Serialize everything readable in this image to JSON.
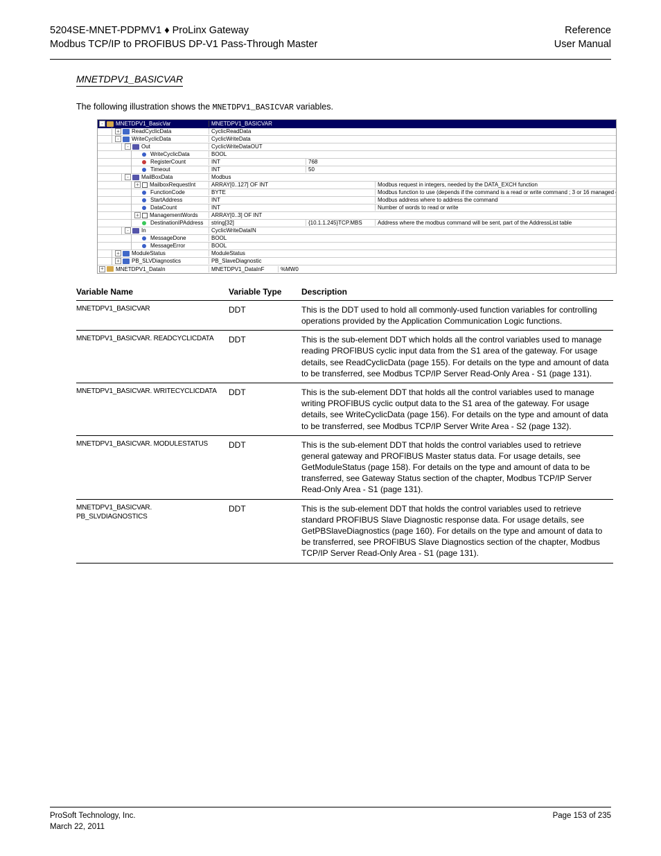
{
  "header": {
    "left1": "5204SE-MNET-PDPMV1 ♦ ProLinx Gateway",
    "left2": "Modbus TCP/IP to PROFIBUS DP-V1 Pass-Through Master",
    "right1": "Reference",
    "right2": "User Manual"
  },
  "section_title": "MNETDPV1_BASICVAR",
  "intro": {
    "prefix": "The following illustration shows the ",
    "code": "MNETDPV1_BASICVAR",
    "suffix": " variables."
  },
  "tree": {
    "header_bg": "#000060",
    "header_fg": "#ffffff",
    "col_widths": {
      "name": 160,
      "type": 100,
      "val1": 40,
      "val2": 100
    },
    "rows": [
      {
        "indent": 0,
        "exp": "-",
        "icon": "folder",
        "icon_color": "yellow",
        "name": "MNETDPV1_BasicVar",
        "type": "MNETDPV1_BASICVAR",
        "val1": "",
        "val2": "",
        "desc": "",
        "header": true
      },
      {
        "indent": 1,
        "exp": "+",
        "icon": "folder",
        "icon_color": "blue",
        "name": "ReadCyclicData",
        "type": "CyclicReadData",
        "val1": "",
        "val2": "",
        "desc": ""
      },
      {
        "indent": 1,
        "exp": "-",
        "icon": "folder",
        "icon_color": "blue",
        "name": "WriteCyclicData",
        "type": "CyclicWriteData",
        "val1": "",
        "val2": "",
        "desc": ""
      },
      {
        "indent": 2,
        "exp": "-",
        "icon": "struct",
        "icon_color": "",
        "name": "Out",
        "type": "CyclicWriteDataOUT",
        "val1": "",
        "val2": "",
        "desc": ""
      },
      {
        "indent": 3,
        "exp": "",
        "icon": "var-blue",
        "icon_color": "",
        "name": "WriteCyclicData",
        "type": "BOOL",
        "val1": "",
        "val2": "",
        "desc": ""
      },
      {
        "indent": 3,
        "exp": "",
        "icon": "var-red",
        "icon_color": "",
        "name": "RegisterCount",
        "type": "INT",
        "val1": "",
        "val2": "768",
        "desc": ""
      },
      {
        "indent": 3,
        "exp": "",
        "icon": "var-blue",
        "icon_color": "",
        "name": "Timeout",
        "type": "INT",
        "val1": "",
        "val2": "50",
        "desc": ""
      },
      {
        "indent": 2,
        "exp": "-",
        "icon": "struct",
        "icon_color": "",
        "name": "MailBoxData",
        "type": "Modbus",
        "val1": "",
        "val2": "",
        "desc": ""
      },
      {
        "indent": 3,
        "exp": "+",
        "icon": "array",
        "icon_color": "",
        "name": "MailboxRequestInt",
        "type": "ARRAY[0..127] OF INT",
        "val1": "",
        "val2": "",
        "desc": "Modbus request in integers, needed by the DATA_EXCH function"
      },
      {
        "indent": 3,
        "exp": "",
        "icon": "var-blue",
        "icon_color": "",
        "name": "FunctionCode",
        "type": "BYTE",
        "val1": "",
        "val2": "",
        "desc": "Modbus function to use (depends if the command is a read or write command ; 3 or 16 managed only)"
      },
      {
        "indent": 3,
        "exp": "",
        "icon": "var-blue",
        "icon_color": "",
        "name": "StartAddress",
        "type": "INT",
        "val1": "",
        "val2": "",
        "desc": "Modbus address where to address the command"
      },
      {
        "indent": 3,
        "exp": "",
        "icon": "var-blue",
        "icon_color": "",
        "name": "DataCount",
        "type": "INT",
        "val1": "",
        "val2": "",
        "desc": "Number of words to read or write"
      },
      {
        "indent": 3,
        "exp": "+",
        "icon": "array",
        "icon_color": "",
        "name": "ManagementWords",
        "type": "ARRAY[0..3] OF INT",
        "val1": "",
        "val2": "",
        "desc": ""
      },
      {
        "indent": 3,
        "exp": "",
        "icon": "var-green",
        "icon_color": "",
        "name": "DestinationIPAddress",
        "type": "string[32]",
        "val1": "",
        "val2": "{10.1.1.245}TCP.MBS",
        "desc": "Address where the modbus command will be sent, part of the AddressList table"
      },
      {
        "indent": 2,
        "exp": "-",
        "icon": "struct",
        "icon_color": "",
        "name": "In",
        "type": "CyclicWriteDataIN",
        "val1": "",
        "val2": "",
        "desc": ""
      },
      {
        "indent": 3,
        "exp": "",
        "icon": "var-blue",
        "icon_color": "",
        "name": "MessageDone",
        "type": "BOOL",
        "val1": "",
        "val2": "",
        "desc": ""
      },
      {
        "indent": 3,
        "exp": "",
        "icon": "var-blue",
        "icon_color": "",
        "name": "MessageError",
        "type": "BOOL",
        "val1": "",
        "val2": "",
        "desc": ""
      },
      {
        "indent": 1,
        "exp": "+",
        "icon": "folder",
        "icon_color": "blue",
        "name": "ModuleStatus",
        "type": "ModuleStatus",
        "val1": "",
        "val2": "",
        "desc": ""
      },
      {
        "indent": 1,
        "exp": "+",
        "icon": "folder",
        "icon_color": "blue",
        "name": "PB_SLVDiagnostics",
        "type": "PB_SlaveDiagnostic",
        "val1": "",
        "val2": "",
        "desc": ""
      },
      {
        "indent": 0,
        "exp": "+",
        "icon": "folder",
        "icon_color": "yellow",
        "name": "MNETDPV1_DataIn",
        "type": "MNETDPV1_DataInF",
        "val1": "%MW0",
        "val2": "",
        "desc": ""
      }
    ]
  },
  "ref_table": {
    "columns": [
      "Variable Name",
      "Variable Type",
      "Description"
    ],
    "rows": [
      {
        "var": "MNETDPV1_BASICVAR",
        "type": "DDT",
        "desc": "This is the DDT used to hold all commonly-used function variables for controlling operations provided by the Application Communication Logic functions."
      },
      {
        "var": "MNETDPV1_BASICVAR. READCYCLICDATA",
        "type": "DDT",
        "desc": "This is the sub-element DDT which holds all the control variables used to manage reading PROFIBUS cyclic input data from the S1 area of the gateway. For usage details, see ReadCyclicData (page 155). For details on the type and amount of data to be transferred, see Modbus TCP/IP Server Read-Only Area - S1 (page 131)."
      },
      {
        "var": "MNETDPV1_BASICVAR. WRITECYCLICDATA",
        "type": "DDT",
        "desc": "This is the sub-element DDT that holds all the control variables used to manage writing PROFIBUS cyclic output data to the S1 area of the gateway. For usage details, see WriteCyclicData (page 156). For details on the type and amount of data to be transferred, see Modbus TCP/IP Server Write Area - S2 (page 132)."
      },
      {
        "var": "MNETDPV1_BASICVAR. MODULESTATUS",
        "type": "DDT",
        "desc": "This is the sub-element DDT that holds the control variables used to retrieve general gateway and PROFIBUS Master status data. For usage details, see GetModuleStatus (page 158). For details on the type and amount of data to be transferred, see Gateway Status section of the chapter, Modbus TCP/IP Server Read-Only Area - S1 (page 131)."
      },
      {
        "var": "MNETDPV1_BASICVAR. PB_SLVDIAGNOSTICS",
        "type": "DDT",
        "desc": "This is the sub-element DDT that holds the control variables used to retrieve standard PROFIBUS Slave Diagnostic response data. For usage details, see GetPBSlaveDiagnostics (page 160). For details on the type and amount of data to be transferred, see PROFIBUS Slave Diagnostics section of the chapter, Modbus TCP/IP Server Read-Only Area - S1 (page 131)."
      }
    ]
  },
  "footer": {
    "left1": "ProSoft Technology, Inc.",
    "left2": "March 22, 2011",
    "right1": "Page 153 of 235"
  }
}
